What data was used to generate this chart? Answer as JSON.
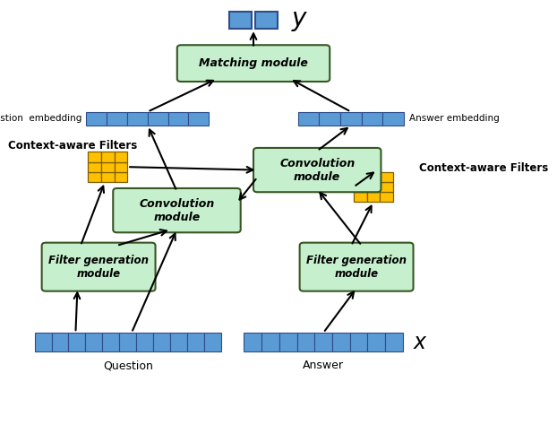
{
  "fig_width": 6.22,
  "fig_height": 4.74,
  "bg_color": "#ffffff",
  "blue_box": "#4472C4",
  "blue_box_edge": "#2E4D8A",
  "green_box_face": "#C6EFCE",
  "green_box_edge": "#375623",
  "gold_color": "#FFC000",
  "gold_edge": "#7F6000",
  "input_bar_face": "#5B9BD5",
  "input_bar_edge": "#2E75B6",
  "label_question": "Question",
  "label_answer": "Answer",
  "label_q_embed": "Question  embedding",
  "label_a_embed": "Answer embedding",
  "label_context_left": "Context-aware Filters",
  "label_context_right": "Context-aware Filters",
  "label_matching": "Matching module",
  "label_conv_right": "Convolution\nmodule",
  "label_conv_left": "Convolution\nmodule",
  "label_filter_left": "Filter generation\nmodule",
  "label_filter_right": "Filter generation\nmodule"
}
